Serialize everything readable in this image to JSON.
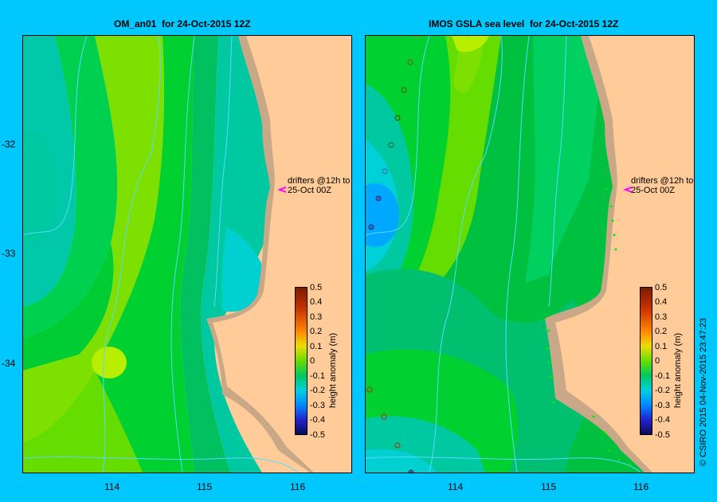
{
  "panels": [
    {
      "title": "OM_an01  for 24-Oct-2015 12Z",
      "annotation_line1": "drifters @12h to",
      "annotation_line2": "25-Oct 00Z"
    },
    {
      "title": "IMOS GSLA sea level  for 24-Oct-2015 12Z",
      "annotation_line1": "drifters @12h to",
      "annotation_line2": "25-Oct 00Z"
    }
  ],
  "lat_ticks": [
    "-32",
    "-33",
    "-34"
  ],
  "lon_ticks": [
    "114",
    "115",
    "116"
  ],
  "colorbar": {
    "title": "height anomaly (m)",
    "labels": [
      "0.5",
      "0.4",
      "0.3",
      "0.2",
      "0.1",
      "0",
      "-0.1",
      "-0.2",
      "-0.3",
      "-0.4",
      "-0.5"
    ]
  },
  "copyright": "© CSIRO 2015   04-Nov-2015 23:47:23",
  "colors": {
    "land": "#ffcc99",
    "shelf": "#c8a887",
    "background": "#00c8ff",
    "drifter_arrow": "#ff00ff"
  }
}
